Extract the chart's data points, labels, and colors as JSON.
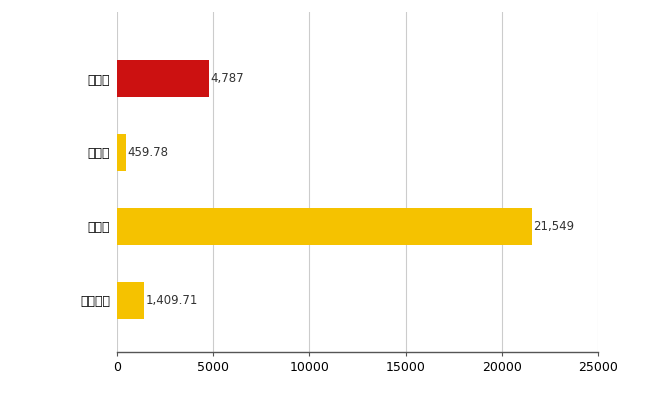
{
  "categories": [
    "旭川市",
    "県平均",
    "県最大",
    "全国平均"
  ],
  "values": [
    4787,
    459.78,
    21549,
    1409.71
  ],
  "bar_colors": [
    "#cc1111",
    "#f5c200",
    "#f5c200",
    "#f5c200"
  ],
  "labels": [
    "4,787",
    "459.78",
    "21,549",
    "1,409.71"
  ],
  "xlim": [
    0,
    25000
  ],
  "xticks": [
    0,
    5000,
    10000,
    15000,
    20000,
    25000
  ],
  "xtick_labels": [
    "0",
    "5000",
    "10000",
    "15000",
    "20000",
    "25000"
  ],
  "background_color": "#ffffff",
  "grid_color": "#cccccc",
  "bar_height": 0.5,
  "label_fontsize": 8.5,
  "tick_fontsize": 9.0
}
